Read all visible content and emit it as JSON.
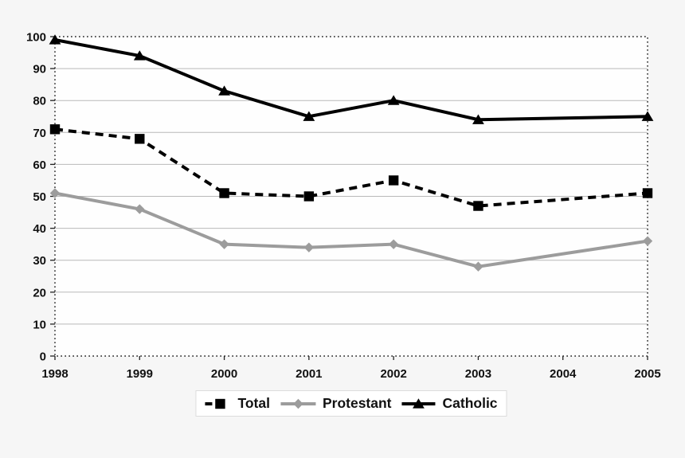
{
  "chart_data": {
    "type": "line",
    "title": "",
    "xlabel": "",
    "ylabel": "",
    "x": [
      1998,
      1999,
      2000,
      2001,
      2002,
      2003,
      2004,
      2005
    ],
    "x_tick_labels": [
      "1998",
      "1999",
      "2000",
      "2001",
      "2002",
      "2003",
      "2004",
      "2005"
    ],
    "ylim": [
      0,
      100
    ],
    "y_ticks": [
      0,
      10,
      20,
      30,
      40,
      50,
      60,
      70,
      80,
      90,
      100
    ],
    "grid": true,
    "legend_position": "bottom-center",
    "series": [
      {
        "name": "Total",
        "color": "#000000",
        "line_style": "dashed",
        "marker": "square",
        "values": [
          71,
          68,
          51,
          50,
          55,
          47,
          null,
          51
        ]
      },
      {
        "name": "Protestant",
        "color": "#9c9c9c",
        "line_style": "solid",
        "marker": "diamond",
        "values": [
          51,
          46,
          35,
          34,
          35,
          28,
          null,
          36
        ]
      },
      {
        "name": "Catholic",
        "color": "#000000",
        "line_style": "solid",
        "marker": "triangle",
        "values": [
          99,
          94,
          83,
          75,
          80,
          74,
          null,
          75
        ]
      }
    ]
  },
  "colors": {
    "page_bg": "#f6f6f6",
    "plot_bg": "#fefefe",
    "grid": "#b9b9b9",
    "frame": "#222222",
    "tick": "#222222",
    "tick_text": "#111111",
    "legend_bg": "#ffffff",
    "legend_border": "#dcdcdc"
  }
}
